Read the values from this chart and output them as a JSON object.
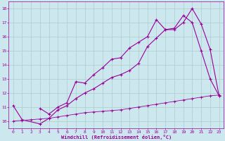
{
  "xlabel": "Windchill (Refroidissement éolien,°C)",
  "ylabel": "",
  "bg_color": "#cce8ee",
  "grid_color": "#aacccc",
  "line_color": "#990099",
  "xlim": [
    -0.5,
    23.5
  ],
  "ylim": [
    9.5,
    18.5
  ],
  "xticks": [
    0,
    1,
    2,
    3,
    4,
    5,
    6,
    7,
    8,
    9,
    10,
    11,
    12,
    13,
    14,
    15,
    16,
    17,
    18,
    19,
    20,
    21,
    22,
    23
  ],
  "yticks": [
    10,
    11,
    12,
    13,
    14,
    15,
    16,
    17,
    18
  ],
  "line1_x": [
    0,
    1,
    3,
    4,
    5,
    6,
    7,
    8,
    9,
    10,
    11,
    12,
    13,
    14,
    15,
    16,
    17,
    18,
    19,
    20,
    21,
    22,
    23
  ],
  "line1_y": [
    11.1,
    10.1,
    9.8,
    10.2,
    10.8,
    11.1,
    11.6,
    12.0,
    12.3,
    12.7,
    13.1,
    13.3,
    13.6,
    14.1,
    15.3,
    15.9,
    16.5,
    16.5,
    17.0,
    18.0,
    16.9,
    15.1,
    11.8
  ],
  "line2_x": [
    3,
    4,
    5,
    6,
    7,
    8,
    9,
    10,
    11,
    12,
    13,
    14,
    15,
    16,
    17,
    18,
    19,
    20,
    21,
    22,
    23
  ],
  "line2_y": [
    10.9,
    10.5,
    11.0,
    11.3,
    12.8,
    12.7,
    13.3,
    13.8,
    14.4,
    14.5,
    15.2,
    15.6,
    16.0,
    17.2,
    16.5,
    16.6,
    17.5,
    17.0,
    15.0,
    13.0,
    11.8
  ],
  "line3_x": [
    0,
    1,
    2,
    3,
    4,
    5,
    6,
    7,
    8,
    9,
    10,
    11,
    12,
    13,
    14,
    15,
    16,
    17,
    18,
    19,
    20,
    21,
    22,
    23
  ],
  "line3_y": [
    10.0,
    10.05,
    10.1,
    10.15,
    10.2,
    10.3,
    10.4,
    10.5,
    10.6,
    10.65,
    10.7,
    10.75,
    10.8,
    10.9,
    11.0,
    11.1,
    11.2,
    11.3,
    11.4,
    11.5,
    11.6,
    11.7,
    11.8,
    11.85
  ],
  "marker": "+"
}
